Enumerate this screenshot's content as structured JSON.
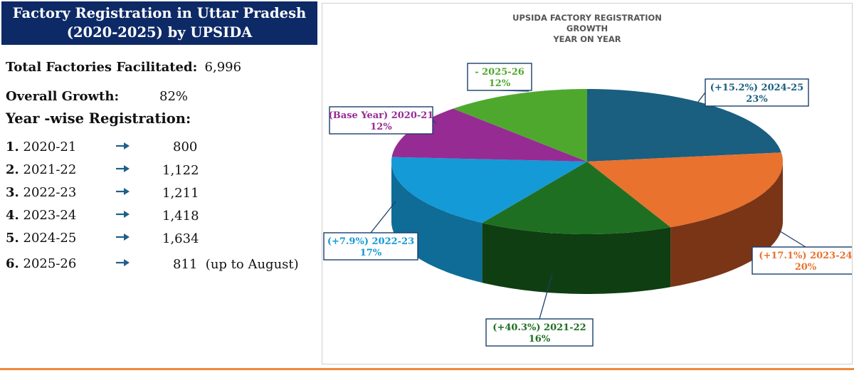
{
  "panel": {
    "title_line1": "Factory Registration in Uttar Pradesh",
    "title_line2": "(2020-2025) by UPSIDA",
    "total_label": "Total Factories Facilitated:",
    "total_value": "6,996",
    "growth_label": "Overall Growth:",
    "growth_value": "82%",
    "yearwise_label": "Year -wise Registration:",
    "rows": [
      {
        "num": "1.",
        "year": "2020-21",
        "value": "800"
      },
      {
        "num": "2.",
        "year": "2021-22",
        "value": "1,122"
      },
      {
        "num": "3.",
        "year": "2022-23",
        "value": "1,211"
      },
      {
        "num": "4.",
        "year": "2023-24",
        "value": "1,418"
      },
      {
        "num": "5.",
        "year": "2024-25",
        "value": "1,634"
      },
      {
        "num": "6.",
        "year": "2025-26",
        "value": "811  (up to August)"
      }
    ],
    "arrow_color": "#1f5f8b"
  },
  "chart_data": {
    "type": "pie",
    "title_lines": [
      "UPSIDA FACTORY REGISTRATION",
      "GROWTH",
      "YEAR ON YEAR"
    ],
    "slices": [
      {
        "label_line1": "(+15.2%) 2024-25",
        "label_line2": "23%",
        "value": 23,
        "color": "#1a5e80",
        "side_color": "#0f3a52",
        "text_color": "#1a5e80"
      },
      {
        "label_line1": "(+17.1%) 2023-24",
        "label_line2": "20%",
        "value": 20,
        "color": "#e8722e",
        "side_color": "#7a3516",
        "text_color": "#e8722e"
      },
      {
        "label_line1": "(+40.3%) 2021-22",
        "label_line2": "16%",
        "value": 16,
        "color": "#1f6f22",
        "side_color": "#0f3e12",
        "text_color": "#1f6f22"
      },
      {
        "label_line1": "(+7.9%) 2022-23",
        "label_line2": "17%",
        "value": 17,
        "color": "#149ad6",
        "side_color": "#0e6c97",
        "text_color": "#149ad6"
      },
      {
        "label_line1": "(Base Year) 2020-21",
        "label_line2": "12%",
        "value": 12,
        "color": "#962b94",
        "side_color": "#5c1a5a",
        "text_color": "#962b94"
      },
      {
        "label_line1": "- 2025-26",
        "label_line2": "12%",
        "value": 12,
        "color": "#4fa82e",
        "side_color": "#2e6b19",
        "text_color": "#4fa82e"
      }
    ]
  }
}
